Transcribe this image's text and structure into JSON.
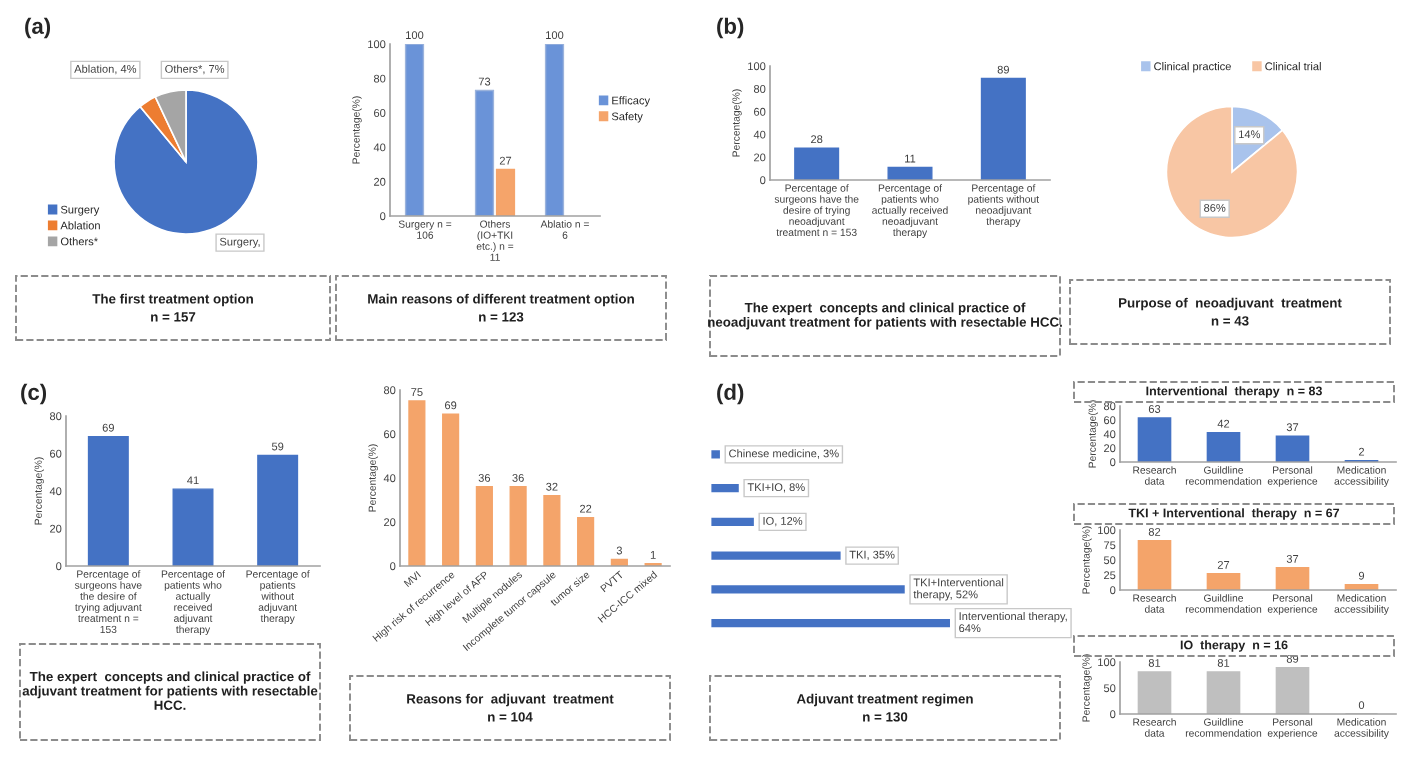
{
  "chart_data": [
    {
      "type": "pie",
      "title": "The first treatment option",
      "subtitle": "n = 157",
      "annotations": [
        "(a)"
      ],
      "categories": [
        "Surgery",
        "Ablation",
        "Others*"
      ],
      "values": [
        89,
        4,
        7
      ],
      "colors": [
        "#4472c4",
        "#ed7d31",
        "#a5a5a5"
      ],
      "value_labels": [
        "Surgery,",
        "Ablation, 4%",
        "Others*, 7%"
      ],
      "legend": "bottom left"
    },
    {
      "type": "bar",
      "title": "Main reasons of different treatment option",
      "subtitle": "n = 123",
      "categories": [
        "Surgery n = 106",
        "Others (IO+TKI etc.) n = 11",
        "Ablatio n = 6"
      ],
      "ylabel": "Percentage(%)",
      "ylim": [
        0,
        100
      ],
      "yticks": [
        0,
        20,
        40,
        60,
        80,
        100
      ],
      "data_labels": true,
      "legend": "right",
      "series": [
        {
          "name": "Efficacy",
          "color": "#6a93d8",
          "values": [
            100,
            73,
            100
          ]
        },
        {
          "name": "Safety",
          "color": "#f5a46a",
          "values": [
            null,
            27,
            null
          ]
        }
      ]
    },
    {
      "type": "bar",
      "title": "The expert  concepts and clinical practice of neoadjuvant treatment for patients with resectable HCC.",
      "annotations": [
        "(b)"
      ],
      "categories": [
        "Percentage of surgeons have the desire of trying neoadjuvant treatment n = 153",
        "Percentage of patients who actually received neoadjuvant therapy",
        "Percentage of patients without neoadjuvant therapy"
      ],
      "values": [
        28,
        11,
        89
      ],
      "color": "#4472c4",
      "ylabel": "Percentage(%)",
      "ylim": [
        0,
        100
      ],
      "yticks": [
        0,
        20,
        40,
        60,
        80,
        100
      ],
      "data_labels": true
    },
    {
      "type": "pie",
      "title": "Purpose of  neoadjuvant  treatment",
      "subtitle": "n = 43",
      "categories": [
        "Clinical practice",
        "Clinical trial"
      ],
      "values": [
        14,
        86
      ],
      "colors": [
        "#a9c3ec",
        "#f8c6a4"
      ],
      "value_labels": [
        "14%",
        "86%"
      ],
      "legend": "top"
    },
    {
      "type": "bar",
      "title": "The expert  concepts and clinical practice of adjuvant treatment for patients with resectable HCC.",
      "annotations": [
        "(c)"
      ],
      "categories": [
        "Percentage of surgeons have the desire of trying adjuvant treatment n = 153",
        "Percentage of patients who actually received adjuvant therapy",
        "Percentage of patients without adjuvant therapy"
      ],
      "values": [
        69,
        41,
        59
      ],
      "color": "#4472c4",
      "ylabel": "Percentage(%)",
      "ylim": [
        0,
        80
      ],
      "yticks": [
        0,
        20,
        40,
        60,
        80
      ],
      "data_labels": true
    },
    {
      "type": "bar",
      "title": "Reasons for  adjuvant  treatment",
      "subtitle": "n = 104",
      "categories": [
        "MVI",
        "High risk of recurrence",
        "High level of AFP",
        "Multiple nodules",
        "Incomplete tumor capsule",
        "tumor size",
        "PVTT",
        "HCC-ICC mixed"
      ],
      "values": [
        75,
        69,
        36,
        36,
        32,
        22,
        3,
        1
      ],
      "color": "#f4a46a",
      "ylabel": "Percentage(%)",
      "ylim": [
        0,
        80
      ],
      "yticks": [
        0,
        20,
        40,
        60,
        80
      ],
      "data_labels": true
    },
    {
      "type": "bar",
      "orientation": "horizontal",
      "title": "Adjuvant treatment regimen",
      "subtitle": "n = 130",
      "annotations": [
        "(d)"
      ],
      "categories": [
        null,
        null,
        null,
        null,
        null,
        null
      ],
      "values": [
        3,
        8,
        12,
        35,
        52,
        64
      ],
      "color": "#4472c4",
      "value_labels": [
        "Chinese medicine, 3%",
        "TKI+IO, 8%",
        "IO, 12%",
        "TKI, 35%",
        "TKI+Interventional therapy, 52%",
        "Interventional therapy, 64%"
      ],
      "tick_labels": false
    },
    {
      "type": "bar",
      "title": "Interventional  therapy  n = 83",
      "categories": [
        "Research data",
        "Guildline recommendation",
        "Personal experience",
        "Medication accessibility"
      ],
      "values": [
        63,
        42,
        37,
        2
      ],
      "color": "#4472c4",
      "ylabel": "Percentage(%)",
      "ylim": [
        0,
        80
      ],
      "yticks": [
        0,
        20,
        40,
        60,
        80
      ],
      "data_labels": true
    },
    {
      "type": "bar",
      "title": "TKI + Interventional  therapy  n = 67",
      "categories": [
        "Research data",
        "Guildline recommendation",
        "Personal experience",
        "Medication accessibility"
      ],
      "values": [
        82,
        27,
        37,
        9
      ],
      "color": "#f4a46a",
      "ylabel": "Percentage(%)",
      "ylim": [
        0,
        100
      ],
      "yticks": [
        0,
        25,
        50,
        75,
        100
      ],
      "data_labels": true
    },
    {
      "type": "bar",
      "title": "IO  therapy  n = 16",
      "categories": [
        "Research data",
        "Guildline recommendation",
        "Personal experience",
        "Medication accessibility"
      ],
      "values": [
        81,
        81,
        89,
        0
      ],
      "color": "#bfbfbf",
      "ylabel": "Percentage(%)",
      "ylim": [
        0,
        100
      ],
      "yticks": [
        0,
        50,
        100
      ],
      "data_labels": true
    }
  ]
}
